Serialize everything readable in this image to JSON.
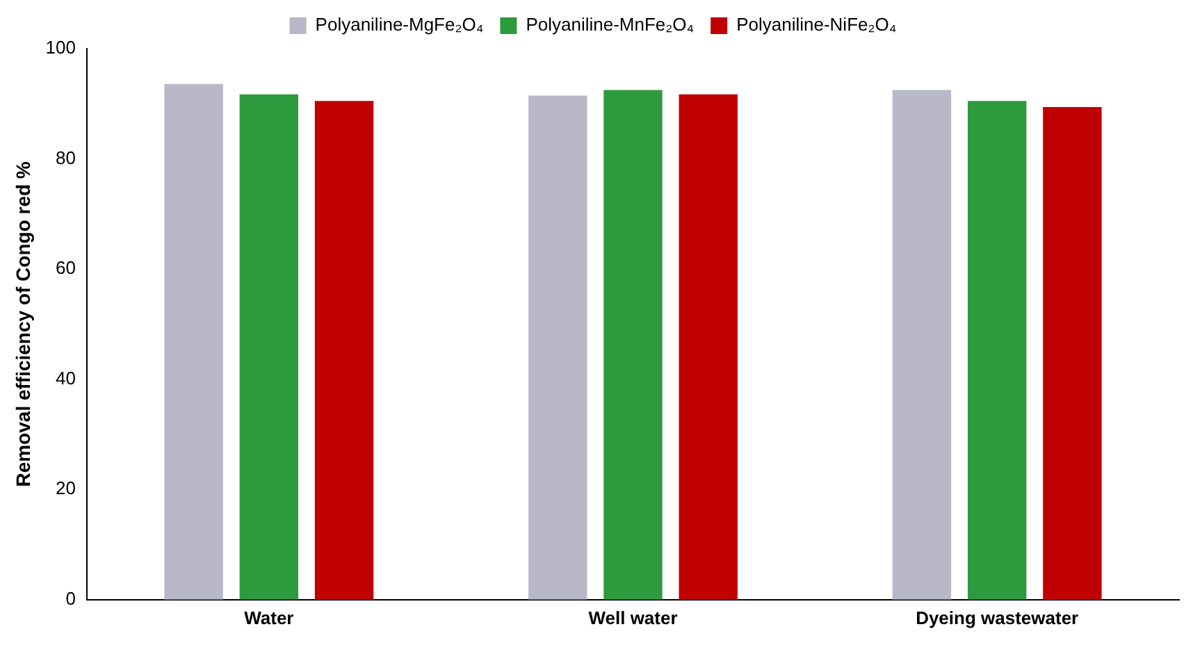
{
  "chart_data": {
    "type": "bar",
    "ylabel": "Removal efficiency of Congo red %",
    "categories": [
      "Water",
      "Well water",
      "Dyeing wastewater"
    ],
    "series": [
      {
        "name": "Polyaniline-MgFe₂O₄",
        "color": "#b8b8c8",
        "values": [
          93.6,
          91.5,
          92.5
        ]
      },
      {
        "name": "Polyaniline-MnFe₂O₄",
        "color": "#2e9a3e",
        "values": [
          91.7,
          92.5,
          90.5
        ]
      },
      {
        "name": "Polyaniline-NiFe₂O₄",
        "color": "#c00000",
        "values": [
          90.5,
          91.7,
          89.4
        ]
      }
    ],
    "ylim": [
      0,
      100
    ],
    "yticks": [
      0,
      20,
      40,
      60,
      80,
      100
    ],
    "grid": false,
    "legend": "top"
  }
}
